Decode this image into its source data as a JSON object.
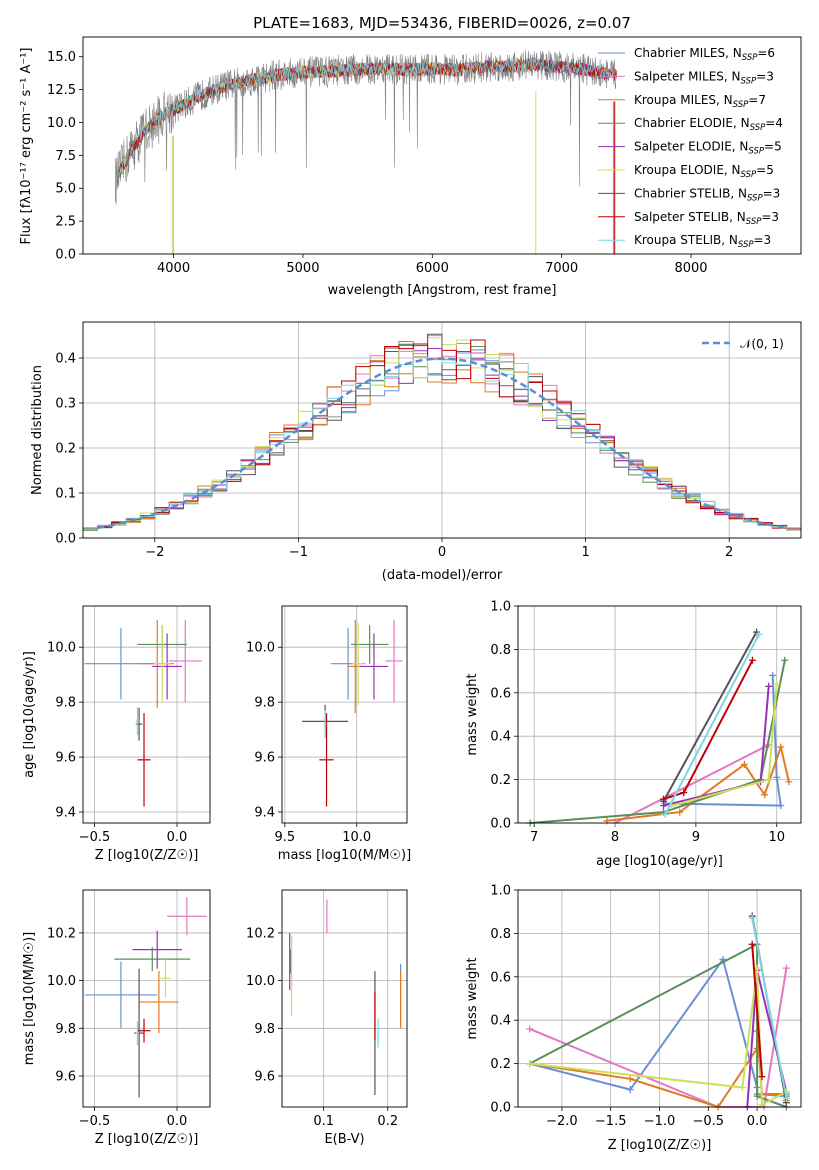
{
  "colors": {
    "chabrier_miles": "#6b8fd6",
    "salpeter_miles": "#e377c2",
    "kroupa_miles": "#e07b24",
    "chabrier_elodie": "#5a8f5a",
    "salpeter_elodie": "#9b30b8",
    "kroupa_elodie": "#cde05a",
    "chabrier_stelib": "#555555",
    "salpeter_stelib": "#c00000",
    "kroupa_stelib": "#7fd6e0",
    "gaussian": "#5b8dd6"
  },
  "chart_data": [
    {
      "id": "spectrum",
      "type": "line",
      "title": "PLATE=1683, MJD=53436, FIBERID=0026, z=0.07",
      "xlabel": "wavelength [Angstrom, rest frame]",
      "ylabel": "Flux [fλ10⁻¹⁷ erg cm⁻² s⁻¹ A⁻¹]",
      "xlim": [
        3300,
        8850
      ],
      "ylim": [
        0,
        16.5
      ],
      "xticks": [
        4000,
        5000,
        6000,
        7000,
        8000
      ],
      "yticks": [
        0.0,
        2.5,
        5.0,
        7.5,
        10.0,
        12.5,
        15.0
      ],
      "data_continuum": {
        "x": [
          3550,
          3650,
          3750,
          3850,
          3950,
          4050,
          4200,
          4400,
          4600,
          4800,
          5000,
          5200,
          5400,
          5600,
          5800,
          6000,
          6200,
          6400,
          6600,
          6800,
          7000,
          7200,
          7400
        ],
        "y": [
          5.5,
          7.5,
          9.0,
          10.0,
          10.8,
          11.2,
          12.0,
          12.8,
          13.2,
          13.6,
          13.8,
          13.9,
          14.0,
          14.1,
          14.0,
          14.1,
          14.0,
          14.2,
          14.3,
          14.4,
          14.2,
          14.0,
          13.6
        ]
      },
      "legend": [
        {
          "label": "Chabrier MILES, N",
          "sub": "SSP",
          "tail": "=6",
          "color_key": "chabrier_miles"
        },
        {
          "label": "Salpeter MILES, N",
          "sub": "SSP",
          "tail": "=3",
          "color_key": "salpeter_miles"
        },
        {
          "label": "Kroupa MILES, N",
          "sub": "SSP",
          "tail": "=7",
          "color_key": "kroupa_miles"
        },
        {
          "label": "Chabrier ELODIE, N",
          "sub": "SSP",
          "tail": "=4",
          "color_key": "chabrier_elodie"
        },
        {
          "label": "Salpeter ELODIE, N",
          "sub": "SSP",
          "tail": "=5",
          "color_key": "salpeter_elodie"
        },
        {
          "label": "Kroupa ELODIE, N",
          "sub": "SSP",
          "tail": "=5",
          "color_key": "kroupa_elodie"
        },
        {
          "label": "Chabrier STELIB, N",
          "sub": "SSP",
          "tail": "=3",
          "color_key": "chabrier_stelib"
        },
        {
          "label": "Salpeter STELIB, N",
          "sub": "SSP",
          "tail": "=3",
          "color_key": "salpeter_stelib"
        },
        {
          "label": "Kroupa STELIB, N",
          "sub": "SSP",
          "tail": "=3",
          "color_key": "kroupa_stelib"
        }
      ]
    },
    {
      "id": "residuals",
      "type": "line",
      "xlabel": "(data-model)/error",
      "ylabel": "Normed distribution",
      "xlim": [
        -2.5,
        2.5
      ],
      "ylim": [
        0,
        0.48
      ],
      "xticks": [
        -2,
        -1,
        0,
        1,
        2
      ],
      "xticklabels": [
        "−2",
        "−1",
        "0",
        "1",
        "2"
      ],
      "yticks": [
        0.0,
        0.1,
        0.2,
        0.3,
        0.4
      ],
      "legend_label": "𝒩(0, 1)",
      "grid": true
    },
    {
      "id": "age_vs_Z",
      "type": "scatter",
      "xlabel": "Z [log10(Z/Z☉)]",
      "ylabel": "age  [log10(age/yr)]",
      "xlim": [
        -0.57,
        0.2
      ],
      "ylim": [
        9.36,
        10.15
      ],
      "xticks": [
        -0.5,
        0.0
      ],
      "xticklabels": [
        "−0.5",
        "0.0"
      ],
      "yticks": [
        9.4,
        9.6,
        9.8,
        10.0
      ],
      "points": [
        {
          "key": "chabrier_miles",
          "x": -0.34,
          "y": 9.94,
          "xerr": 0.22,
          "yerr": 0.13
        },
        {
          "key": "salpeter_miles",
          "x": 0.05,
          "y": 9.95,
          "xerr": 0.1,
          "yerr": 0.15
        },
        {
          "key": "kroupa_miles",
          "x": -0.12,
          "y": 9.94,
          "xerr": 0.1,
          "yerr": 0.16
        },
        {
          "key": "chabrier_elodie",
          "x": -0.09,
          "y": 10.01,
          "xerr": 0.15,
          "yerr": 0.07
        },
        {
          "key": "salpeter_elodie",
          "x": -0.06,
          "y": 9.93,
          "xerr": 0.09,
          "yerr": 0.12
        },
        {
          "key": "kroupa_elodie",
          "x": -0.09,
          "y": 9.94,
          "xerr": 0.05,
          "yerr": 0.14
        },
        {
          "key": "chabrier_stelib",
          "x": -0.23,
          "y": 9.72,
          "xerr": 0.02,
          "yerr": 0.06
        },
        {
          "key": "salpeter_stelib",
          "x": -0.2,
          "y": 9.59,
          "xerr": 0.04,
          "yerr": 0.17
        },
        {
          "key": "kroupa_stelib",
          "x": -0.24,
          "y": 9.73,
          "xerr": 0.01,
          "yerr": 0.05
        }
      ]
    },
    {
      "id": "age_vs_mass",
      "type": "scatter",
      "xlabel": "mass [log10(M/M☉)]",
      "xlim": [
        9.48,
        10.35
      ],
      "ylim": [
        9.36,
        10.15
      ],
      "xticks": [
        9.5,
        10.0
      ],
      "xticklabels": [
        "9.5",
        "10.0"
      ],
      "yticks": [
        9.4,
        9.6,
        9.8,
        10.0
      ],
      "points": [
        {
          "key": "chabrier_miles",
          "x": 9.94,
          "y": 9.94,
          "xerr": 0.12,
          "yerr": 0.13
        },
        {
          "key": "salpeter_miles",
          "x": 10.26,
          "y": 9.95,
          "xerr": 0.06,
          "yerr": 0.15
        },
        {
          "key": "kroupa_miles",
          "x": 9.99,
          "y": 9.93,
          "xerr": 0.05,
          "yerr": 0.17
        },
        {
          "key": "chabrier_elodie",
          "x": 10.09,
          "y": 10.01,
          "xerr": 0.13,
          "yerr": 0.07
        },
        {
          "key": "salpeter_elodie",
          "x": 10.12,
          "y": 9.93,
          "xerr": 0.1,
          "yerr": 0.12
        },
        {
          "key": "kroupa_elodie",
          "x": 10.01,
          "y": 9.94,
          "xerr": 0.04,
          "yerr": 0.15
        },
        {
          "key": "chabrier_stelib",
          "x": 9.78,
          "y": 9.73,
          "xerr": 0.16,
          "yerr": 0.06
        },
        {
          "key": "salpeter_stelib",
          "x": 9.79,
          "y": 9.59,
          "xerr": 0.05,
          "yerr": 0.17
        },
        {
          "key": "kroupa_stelib",
          "x": 9.78,
          "y": 9.72,
          "xerr": 0.01,
          "yerr": 0.05
        }
      ]
    },
    {
      "id": "massweight_vs_age",
      "type": "line",
      "xlabel": "age  [log10(age/yr)]",
      "ylabel": "mass weight",
      "xlim": [
        6.8,
        10.3
      ],
      "ylim": [
        0,
        1.0
      ],
      "xticks": [
        7,
        8,
        9,
        10
      ],
      "yticks": [
        0.0,
        0.2,
        0.4,
        0.6,
        0.8,
        1.0
      ],
      "grid": true,
      "series": [
        {
          "key": "chabrier_miles",
          "x": [
            9.95,
            10.0,
            10.05,
            8.62
          ],
          "y": [
            0.68,
            0.21,
            0.08,
            0.09
          ]
        },
        {
          "key": "salpeter_miles",
          "x": [
            8.0,
            9.9
          ],
          "y": [
            0.0,
            0.36
          ]
        },
        {
          "key": "kroupa_miles",
          "x": [
            7.9,
            8.8,
            9.6,
            9.85,
            10.05,
            10.15
          ],
          "y": [
            0.01,
            0.05,
            0.27,
            0.13,
            0.35,
            0.19
          ]
        },
        {
          "key": "chabrier_elodie",
          "x": [
            6.95,
            8.6,
            9.8,
            10.1
          ],
          "y": [
            0.0,
            0.05,
            0.2,
            0.75
          ]
        },
        {
          "key": "salpeter_elodie",
          "x": [
            8.6,
            9.8,
            9.9
          ],
          "y": [
            0.08,
            0.19,
            0.63
          ]
        },
        {
          "key": "kroupa_elodie",
          "x": [
            8.7,
            9.9,
            10.0
          ],
          "y": [
            0.08,
            0.2,
            0.64
          ]
        },
        {
          "key": "chabrier_stelib",
          "x": [
            8.6,
            9.75
          ],
          "y": [
            0.1,
            0.88
          ]
        },
        {
          "key": "salpeter_stelib",
          "x": [
            8.6,
            8.85,
            9.7
          ],
          "y": [
            0.11,
            0.14,
            0.75
          ]
        },
        {
          "key": "kroupa_stelib",
          "x": [
            8.62,
            9.78
          ],
          "y": [
            0.04,
            0.87
          ]
        }
      ]
    },
    {
      "id": "mass_vs_Z",
      "type": "scatter",
      "xlabel": "Z [log10(Z/Z☉)]",
      "ylabel": "mass [log10(M/M☉)]",
      "xlim": [
        -0.57,
        0.2
      ],
      "ylim": [
        9.47,
        10.38
      ],
      "xticks": [
        -0.5,
        0.0
      ],
      "xticklabels": [
        "−0.5",
        "0.0"
      ],
      "yticks": [
        9.6,
        9.8,
        10.0,
        10.2
      ],
      "points": [
        {
          "key": "chabrier_miles",
          "x": -0.34,
          "y": 9.94,
          "xerr": 0.22,
          "yerr": 0.14
        },
        {
          "key": "salpeter_miles",
          "x": 0.06,
          "y": 10.27,
          "xerr": 0.12,
          "yerr": 0.08
        },
        {
          "key": "kroupa_miles",
          "x": -0.11,
          "y": 9.91,
          "xerr": 0.12,
          "yerr": 0.13
        },
        {
          "key": "chabrier_elodie",
          "x": -0.15,
          "y": 10.09,
          "xerr": 0.23,
          "yerr": 0.05
        },
        {
          "key": "salpeter_elodie",
          "x": -0.12,
          "y": 10.13,
          "xerr": 0.15,
          "yerr": 0.08
        },
        {
          "key": "kroupa_elodie",
          "x": -0.07,
          "y": 10.01,
          "xerr": 0.03,
          "yerr": 0.08
        },
        {
          "key": "chabrier_stelib",
          "x": -0.23,
          "y": 9.78,
          "xerr": 0.03,
          "yerr": 0.27
        },
        {
          "key": "salpeter_stelib",
          "x": -0.2,
          "y": 9.79,
          "xerr": 0.04,
          "yerr": 0.05
        },
        {
          "key": "kroupa_stelib",
          "x": -0.24,
          "y": 9.78,
          "xerr": 0.01,
          "yerr": 0.05
        }
      ]
    },
    {
      "id": "mass_vs_ebv",
      "type": "scatter",
      "xlabel": "E(B-V)",
      "xlim": [
        0.035,
        0.23
      ],
      "ylim": [
        9.47,
        10.38
      ],
      "xticks": [
        0.1,
        0.2
      ],
      "xticklabels": [
        "0.1",
        "0.2"
      ],
      "yticks": [
        9.6,
        9.8,
        10.0,
        10.2
      ],
      "points": [
        {
          "key": "chabrier_miles",
          "x": 0.22,
          "y": 9.94,
          "xerr": 0,
          "yerr": 0.13
        },
        {
          "key": "salpeter_miles",
          "x": 0.105,
          "y": 10.27,
          "xerr": 0,
          "yerr": 0.07
        },
        {
          "key": "kroupa_miles",
          "x": 0.22,
          "y": 9.92,
          "xerr": 0,
          "yerr": 0.12
        },
        {
          "key": "chabrier_elodie",
          "x": 0.048,
          "y": 10.08,
          "xerr": 0,
          "yerr": 0.05
        },
        {
          "key": "salpeter_elodie",
          "x": 0.047,
          "y": 10.08,
          "xerr": 0,
          "yerr": 0.12
        },
        {
          "key": "kroupa_elodie",
          "x": 0.05,
          "y": 10.02,
          "xerr": 0,
          "yerr": 0.17
        },
        {
          "key": "chabrier_stelib",
          "x": 0.18,
          "y": 9.78,
          "xerr": 0,
          "yerr": 0.26
        },
        {
          "key": "salpeter_stelib",
          "x": 0.18,
          "y": 9.85,
          "xerr": 0,
          "yerr": 0.1
        },
        {
          "key": "kroupa_stelib",
          "x": 0.185,
          "y": 9.78,
          "xerr": 0,
          "yerr": 0.06
        }
      ]
    },
    {
      "id": "massweight_vs_Z",
      "type": "line",
      "xlabel": "Z [log10(Z/Z☉)]",
      "ylabel": "mass weight",
      "xlim": [
        -2.45,
        0.45
      ],
      "ylim": [
        0,
        1.0
      ],
      "xticks": [
        -2.0,
        -1.5,
        -1.0,
        -0.5,
        0.0
      ],
      "xticklabels": [
        "−2.0",
        "−1.5",
        "−1.0",
        "−0.5",
        "0.0"
      ],
      "yticks": [
        0.0,
        0.2,
        0.4,
        0.6,
        0.8,
        1.0
      ],
      "grid": true,
      "series": [
        {
          "key": "chabrier_miles",
          "x": [
            -2.33,
            -1.3,
            -0.35,
            0.0,
            0.0,
            0.3,
            0.3
          ],
          "y": [
            0.2,
            0.08,
            0.68,
            0.09,
            0.06,
            0.05,
            0.02
          ]
        },
        {
          "key": "salpeter_miles",
          "x": [
            -2.33,
            -0.4,
            0.07,
            0.3
          ],
          "y": [
            0.36,
            0.0,
            0.0,
            0.64
          ]
        },
        {
          "key": "kroupa_miles",
          "x": [
            -2.33,
            -1.3,
            -0.4,
            0.0,
            0.0,
            0.05,
            0.3,
            0.3
          ],
          "y": [
            0.2,
            0.13,
            0.0,
            0.27,
            0.35,
            0.06,
            0.06,
            0.03
          ]
        },
        {
          "key": "chabrier_elodie",
          "x": [
            -2.33,
            0.0,
            0.0,
            0.3
          ],
          "y": [
            0.2,
            0.75,
            0.05,
            0.0
          ]
        },
        {
          "key": "salpeter_elodie",
          "x": [
            -0.1,
            0.0,
            0.3
          ],
          "y": [
            0.0,
            0.63,
            0.07
          ]
        },
        {
          "key": "kroupa_elodie",
          "x": [
            -2.33,
            -0.15,
            0.0,
            0.05,
            0.3
          ],
          "y": [
            0.2,
            0.09,
            0.64,
            0.01,
            0.07
          ]
        },
        {
          "key": "chabrier_stelib",
          "x": [
            -0.05,
            0.3
          ],
          "y": [
            0.88,
            0.02
          ]
        },
        {
          "key": "salpeter_stelib",
          "x": [
            -0.05,
            0.05
          ],
          "y": [
            0.75,
            0.14
          ]
        },
        {
          "key": "kroupa_stelib",
          "x": [
            -0.05,
            0.3
          ],
          "y": [
            0.87,
            0.04
          ]
        }
      ]
    }
  ]
}
